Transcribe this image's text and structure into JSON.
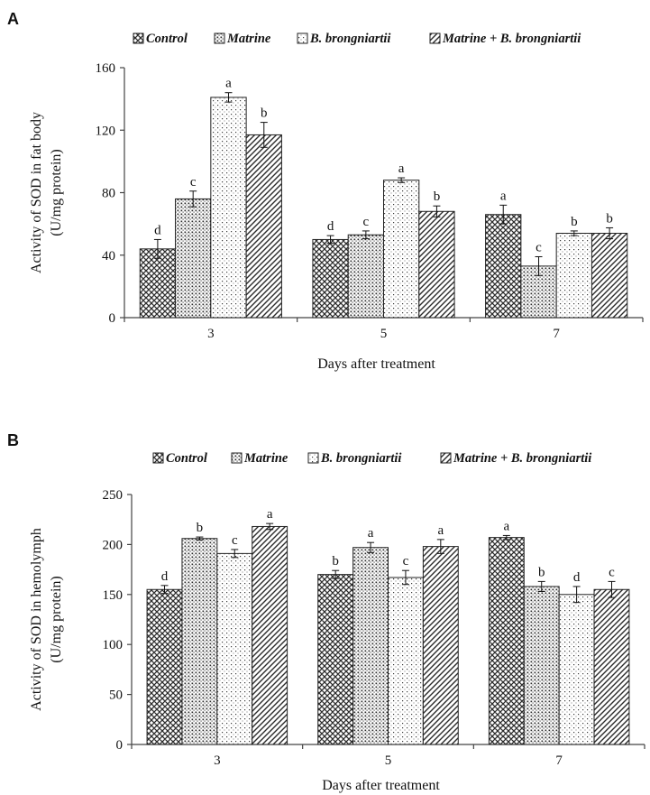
{
  "figure": {
    "panels": [
      "A",
      "B"
    ],
    "legend": [
      "Control",
      "Matrine",
      "B. brongniartii",
      "Matrine + B. brongniartii"
    ],
    "pattern_names": [
      "crosshatch",
      "dense-dots",
      "sparse-dots",
      "diagonal-stripes"
    ],
    "colors": {
      "axis": "#444444",
      "bar_edge": "#222222",
      "pattern_ink": "#2b2b2b"
    }
  },
  "chart_data": [
    {
      "type": "bar",
      "panel": "A",
      "xlabel": "Days after treatment",
      "ylabel": "Activity of SOD in fat body",
      "ylabel_unit": "(U/mg protein)",
      "categories": [
        "3",
        "5",
        "7"
      ],
      "ylim": [
        0,
        160
      ],
      "yticks": [
        0,
        40,
        80,
        120,
        160
      ],
      "legend_position": "top",
      "series": [
        {
          "name": "Control",
          "values": [
            44,
            50,
            66
          ],
          "errors": [
            6,
            2.5,
            6
          ],
          "labels": [
            "d",
            "d",
            "a"
          ]
        },
        {
          "name": "Matrine",
          "values": [
            76,
            53,
            33
          ],
          "errors": [
            5,
            2.5,
            6
          ],
          "labels": [
            "c",
            "c",
            "c"
          ]
        },
        {
          "name": "B. brongniartii",
          "values": [
            141,
            88,
            54
          ],
          "errors": [
            3,
            1.5,
            1.5
          ],
          "labels": [
            "a",
            "a",
            "b"
          ]
        },
        {
          "name": "Matrine + B. brongniartii",
          "values": [
            117,
            68,
            54
          ],
          "errors": [
            8,
            3.5,
            3.5
          ],
          "labels": [
            "b",
            "b",
            "b"
          ]
        }
      ]
    },
    {
      "type": "bar",
      "panel": "B",
      "xlabel": "Days after treatment",
      "ylabel": "Activity of SOD in hemolymph",
      "ylabel_unit": "(U/mg protein)",
      "categories": [
        "3",
        "5",
        "7"
      ],
      "ylim": [
        0,
        250
      ],
      "yticks": [
        0,
        50,
        100,
        150,
        200,
        250
      ],
      "legend_position": "top",
      "series": [
        {
          "name": "Control",
          "values": [
            155,
            170,
            207
          ],
          "errors": [
            4,
            4,
            2
          ],
          "labels": [
            "d",
            "b",
            "a"
          ]
        },
        {
          "name": "Matrine",
          "values": [
            206,
            197,
            158
          ],
          "errors": [
            1.5,
            5,
            5
          ],
          "labels": [
            "b",
            "a",
            "b"
          ]
        },
        {
          "name": "B. brongniartii",
          "values": [
            191,
            167,
            150
          ],
          "errors": [
            4,
            7,
            8
          ],
          "labels": [
            "c",
            "c",
            "d"
          ]
        },
        {
          "name": "Matrine + B. brongniartii",
          "values": [
            218,
            198,
            155
          ],
          "errors": [
            3,
            7,
            8
          ],
          "labels": [
            "a",
            "a",
            "c"
          ]
        }
      ]
    }
  ]
}
